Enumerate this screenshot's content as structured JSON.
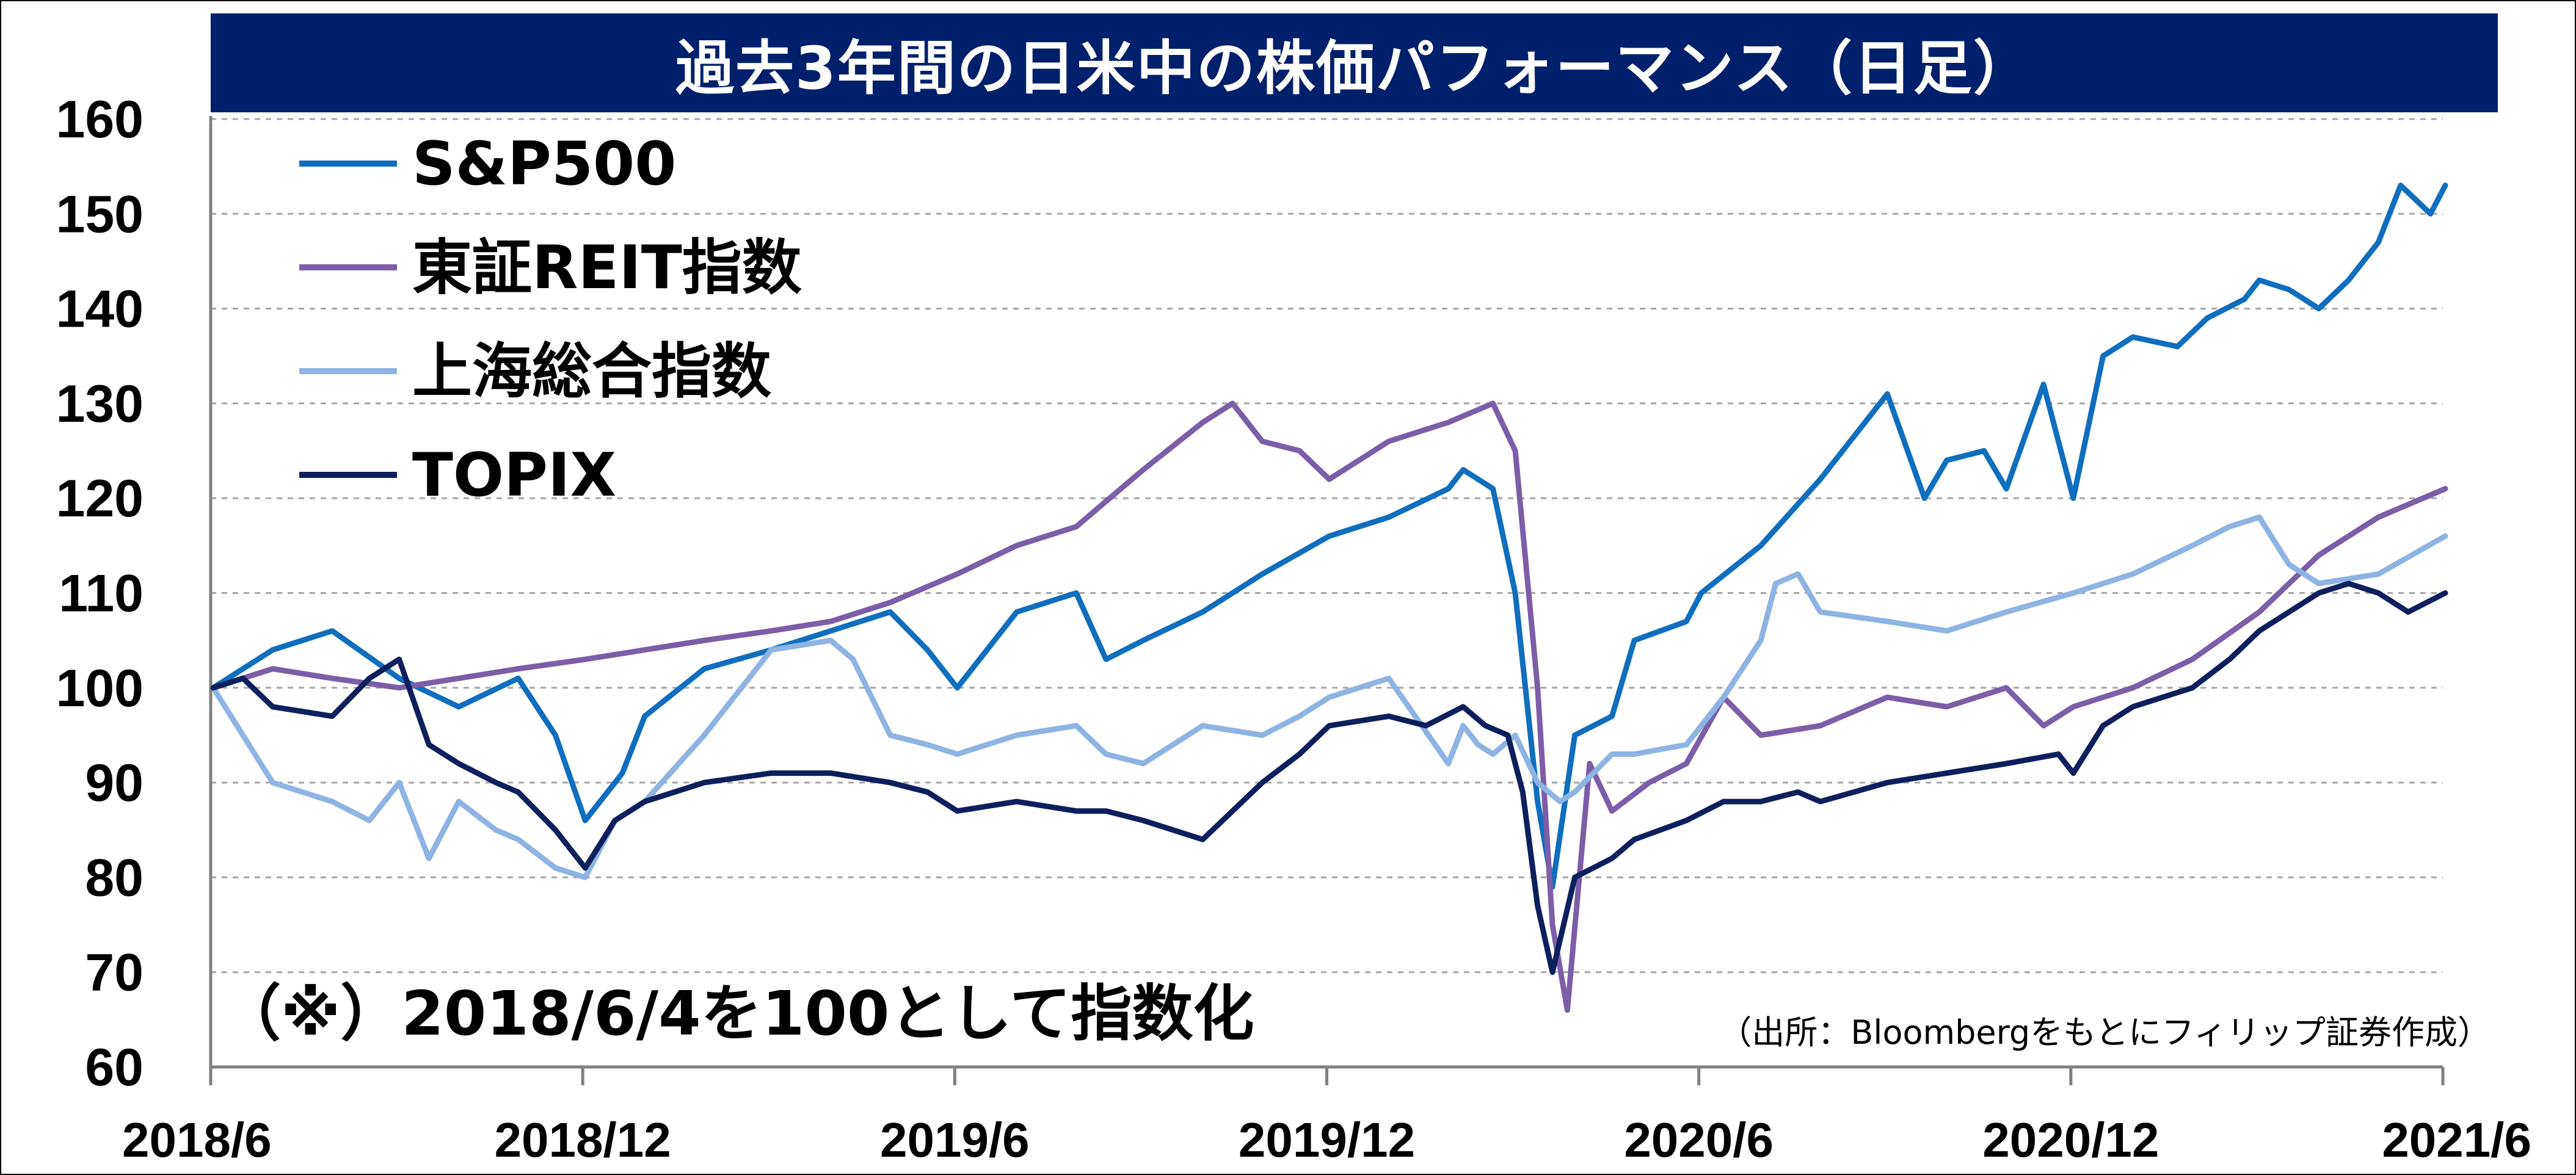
{
  "colors": {
    "title_bg": "#00206b",
    "title_text": "#ffffff",
    "grid": "#a6a6a6",
    "axis": "#808080"
  },
  "chart_data": {
    "type": "line",
    "title": "過去3年間の日米中の株価パフォーマンス（日足）",
    "xlabel": "",
    "ylabel": "",
    "ylim": [
      60,
      160
    ],
    "xlim": [
      2018.4167,
      2021.4167
    ],
    "grid": true,
    "legend_position": "top-left",
    "yticks": [
      160,
      150,
      140,
      130,
      120,
      110,
      100,
      90,
      80,
      70,
      60
    ],
    "xticks": [
      {
        "label": "2018/6",
        "x": 2018.4167
      },
      {
        "label": "2018/12",
        "x": 2018.9167
      },
      {
        "label": "2019/6",
        "x": 2019.4167
      },
      {
        "label": "2019/12",
        "x": 2019.9167
      },
      {
        "label": "2020/6",
        "x": 2020.4167
      },
      {
        "label": "2020/12",
        "x": 2020.9167
      },
      {
        "label": "2021/6",
        "x": 2021.4167
      }
    ],
    "annotation": "（※）2018/6/4を100として指数化",
    "source": "（出所：Bloombergをもとにフィリップ証券作成）",
    "series": [
      {
        "name": "S&P500",
        "color": "#0f6ebe",
        "x": [
          2018.42,
          2018.5,
          2018.58,
          2018.67,
          2018.75,
          2018.83,
          2018.88,
          2018.92,
          2018.97,
          2019.0,
          2019.08,
          2019.17,
          2019.25,
          2019.33,
          2019.38,
          2019.42,
          2019.5,
          2019.58,
          2019.62,
          2019.67,
          2019.75,
          2019.83,
          2019.92,
          2020.0,
          2020.08,
          2020.1,
          2020.14,
          2020.17,
          2020.2,
          2020.22,
          2020.25,
          2020.3,
          2020.33,
          2020.4,
          2020.42,
          2020.5,
          2020.58,
          2020.62,
          2020.67,
          2020.72,
          2020.75,
          2020.8,
          2020.83,
          2020.88,
          2020.92,
          2020.96,
          2021.0,
          2021.06,
          2021.1,
          2021.15,
          2021.17,
          2021.21,
          2021.25,
          2021.29,
          2021.33,
          2021.36,
          2021.4,
          2021.42
        ],
        "y": [
          100,
          104,
          106,
          101,
          98,
          101,
          95,
          86,
          91,
          97,
          102,
          104,
          106,
          108,
          104,
          100,
          108,
          110,
          103,
          105,
          108,
          112,
          116,
          118,
          121,
          123,
          121,
          110,
          88,
          79,
          95,
          97,
          105,
          107,
          110,
          115,
          122,
          126,
          131,
          120,
          124,
          125,
          121,
          132,
          120,
          135,
          137,
          136,
          139,
          141,
          143,
          142,
          140,
          143,
          147,
          153,
          150,
          153
        ]
      },
      {
        "name": "東証REIT指数",
        "color": "#7b5ea7",
        "x": [
          2018.42,
          2018.5,
          2018.58,
          2018.67,
          2018.75,
          2018.83,
          2018.92,
          2019.0,
          2019.08,
          2019.17,
          2019.25,
          2019.33,
          2019.42,
          2019.5,
          2019.58,
          2019.67,
          2019.75,
          2019.79,
          2019.83,
          2019.88,
          2019.92,
          2020.0,
          2020.08,
          2020.14,
          2020.17,
          2020.2,
          2020.22,
          2020.24,
          2020.27,
          2020.3,
          2020.35,
          2020.4,
          2020.45,
          2020.5,
          2020.58,
          2020.67,
          2020.75,
          2020.83,
          2020.88,
          2020.92,
          2021.0,
          2021.08,
          2021.17,
          2021.25,
          2021.33,
          2021.42
        ],
        "y": [
          100,
          102,
          101,
          100,
          101,
          102,
          103,
          104,
          105,
          106,
          107,
          109,
          112,
          115,
          117,
          123,
          128,
          130,
          126,
          125,
          122,
          126,
          128,
          130,
          125,
          100,
          75,
          66,
          92,
          87,
          90,
          92,
          99,
          95,
          96,
          99,
          98,
          100,
          96,
          98,
          100,
          103,
          108,
          114,
          118,
          121
        ]
      },
      {
        "name": "上海総合指数",
        "color": "#8db4e2",
        "x": [
          2018.42,
          2018.46,
          2018.5,
          2018.58,
          2018.63,
          2018.67,
          2018.71,
          2018.75,
          2018.8,
          2018.83,
          2018.88,
          2018.92,
          2018.96,
          2019.0,
          2019.08,
          2019.17,
          2019.25,
          2019.28,
          2019.33,
          2019.38,
          2019.42,
          2019.5,
          2019.58,
          2019.62,
          2019.67,
          2019.75,
          2019.83,
          2019.88,
          2019.92,
          2020.0,
          2020.08,
          2020.1,
          2020.12,
          2020.14,
          2020.17,
          2020.2,
          2020.23,
          2020.25,
          2020.3,
          2020.33,
          2020.4,
          2020.45,
          2020.5,
          2020.52,
          2020.55,
          2020.58,
          2020.67,
          2020.75,
          2020.83,
          2020.92,
          2021.0,
          2021.08,
          2021.13,
          2021.17,
          2021.21,
          2021.25,
          2021.33,
          2021.42
        ],
        "y": [
          100,
          95,
          90,
          88,
          86,
          90,
          82,
          88,
          85,
          84,
          81,
          80,
          86,
          88,
          95,
          104,
          105,
          103,
          95,
          94,
          93,
          95,
          96,
          93,
          92,
          96,
          95,
          97,
          99,
          101,
          92,
          96,
          94,
          93,
          95,
          90,
          88,
          89,
          93,
          93,
          94,
          99,
          105,
          111,
          112,
          108,
          107,
          106,
          108,
          110,
          112,
          115,
          117,
          118,
          113,
          111,
          112,
          116
        ]
      },
      {
        "name": "TOPIX",
        "color": "#0d1f5c",
        "x": [
          2018.42,
          2018.46,
          2018.5,
          2018.58,
          2018.63,
          2018.67,
          2018.71,
          2018.75,
          2018.8,
          2018.83,
          2018.88,
          2018.92,
          2018.96,
          2019.0,
          2019.08,
          2019.17,
          2019.25,
          2019.33,
          2019.38,
          2019.42,
          2019.5,
          2019.58,
          2019.62,
          2019.67,
          2019.75,
          2019.83,
          2019.88,
          2019.92,
          2020.0,
          2020.05,
          2020.1,
          2020.13,
          2020.16,
          2020.18,
          2020.2,
          2020.22,
          2020.25,
          2020.3,
          2020.33,
          2020.4,
          2020.45,
          2020.5,
          2020.55,
          2020.58,
          2020.67,
          2020.75,
          2020.83,
          2020.9,
          2020.92,
          2020.96,
          2021.0,
          2021.08,
          2021.13,
          2021.17,
          2021.21,
          2021.25,
          2021.29,
          2021.33,
          2021.37,
          2021.42
        ],
        "y": [
          100,
          101,
          98,
          97,
          101,
          103,
          94,
          92,
          90,
          89,
          85,
          81,
          86,
          88,
          90,
          91,
          91,
          90,
          89,
          87,
          88,
          87,
          87,
          86,
          84,
          90,
          93,
          96,
          97,
          96,
          98,
          96,
          95,
          89,
          77,
          70,
          80,
          82,
          84,
          86,
          88,
          88,
          89,
          88,
          90,
          91,
          92,
          93,
          91,
          96,
          98,
          100,
          103,
          106,
          108,
          110,
          111,
          110,
          108,
          110
        ]
      }
    ]
  }
}
